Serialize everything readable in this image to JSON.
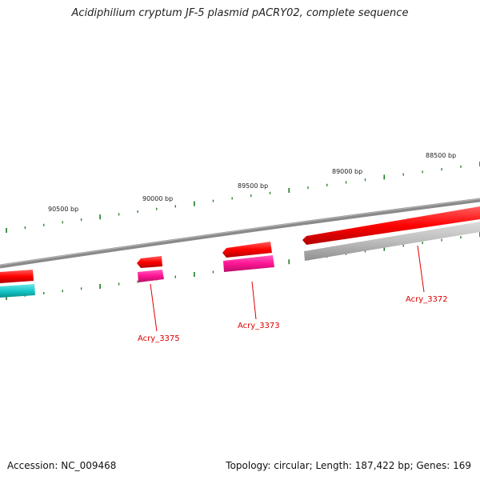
{
  "title": "Acidiphilium cryptum JF-5 plasmid pACRY02, complete sequence",
  "footer": {
    "accession": "Accession: NC_009468",
    "summary": "Topology: circular; Length: 187,422 bp; Genes: 169"
  },
  "colors": {
    "backbone": "#8a8a8a",
    "forward_gene": "#ff0000",
    "reverse_gene_pink": "#ff1493",
    "reverse_gene_grey": "#bdbdbd",
    "reverse_gene_cyan": "#16c9c9",
    "tick": "#1a7a1a",
    "label": "#dd0000"
  },
  "scale_labels": [
    "90500 bp",
    "90000 bp",
    "89500 bp",
    "89000 bp",
    "88500 bp"
  ],
  "genes": [
    {
      "id": "Acry_3375",
      "labeled": true
    },
    {
      "id": "Acry_3373",
      "labeled": true
    },
    {
      "id": "Acry_3372",
      "labeled": true
    }
  ]
}
